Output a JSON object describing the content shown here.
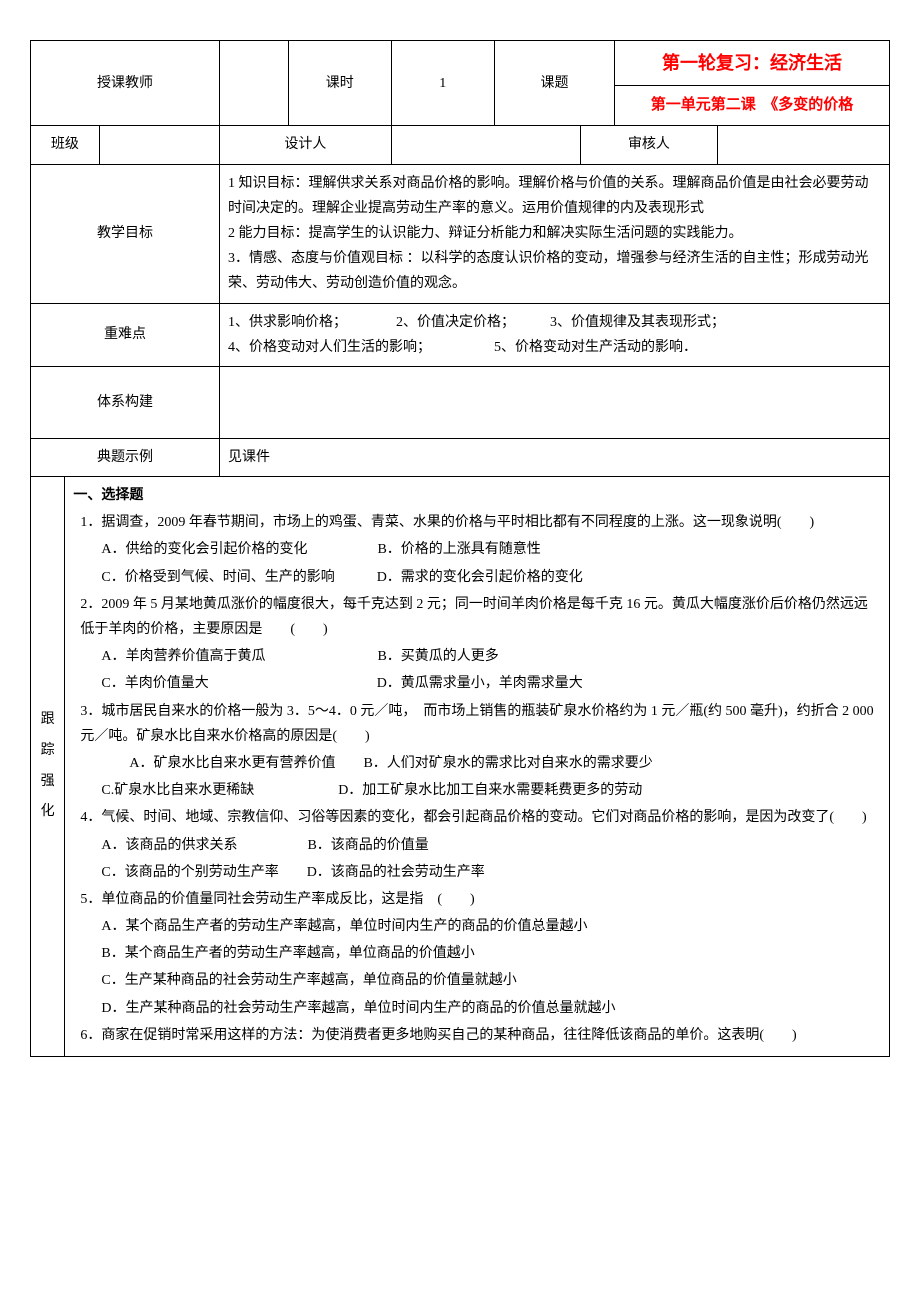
{
  "colors": {
    "text": "#000000",
    "accent": "#ff0000",
    "border": "#000000",
    "bg": "#ffffff"
  },
  "header": {
    "teacher_label": "授课教师",
    "period_label": "课时",
    "period_value": "1",
    "topic_label": "课题",
    "title_main": "第一轮复习：经济生活",
    "title_sub": "第一单元第二课　《多变的价格",
    "class_label": "班级",
    "designer_label": "设计人",
    "reviewer_label": "审核人"
  },
  "rows": {
    "objective_label": "教学目标",
    "objective_text": "1 知识目标：理解供求关系对商品价格的影响。理解价格与价值的关系。理解商品价值是由社会必要劳动时间决定的。理解企业提高劳动生产率的意义。运用价值规律的内及表现形式\n2 能力目标：提高学生的认识能力、辩证分析能力和解决实际生活问题的实践能力。\n3．情感、态度与价值观目标 ：以科学的态度认识价格的变动，增强参与经济生活的自主性；形成劳动光荣、劳动伟大、劳动创造价值的观念。",
    "keypoints_label": "重难点",
    "keypoints_text": "1、供求影响价格；　　　　2、价值决定价格；　　　3、价值规律及其表现形式；\n4、价格变动对人们生活的影响；　　　　　5、价格变动对生产活动的影响．",
    "structure_label": "体系构建",
    "example_label": "典题示例",
    "example_text": "见课件",
    "practice_label": "跟踪强化"
  },
  "exercises": {
    "section_title": "一、选择题",
    "items": [
      {
        "stem": "1．据调查，2009 年春节期间，市场上的鸡蛋、青菜、水果的价格与平时相比都有不同程度的上涨。这一现象说明(　　)",
        "opts": [
          "A．供给的变化会引起价格的变化　　　　　B．价格的上涨具有随意性",
          "C．价格受到气候、时间、生产的影响　　　D．需求的变化会引起价格的变化"
        ]
      },
      {
        "stem": "2．2009 年 5 月某地黄瓜涨价的幅度很大，每千克达到 2 元；同一时间羊肉价格是每千克 16 元。黄瓜大幅度涨价后价格仍然远远低于羊肉的价格，主要原因是　　(　　)",
        "opts": [
          "A．羊肉营养价值高于黄瓜　　　　　　　　B．买黄瓜的人更多",
          "C．羊肉价值量大　　　　　　　　　　　　D．黄瓜需求量小，羊肉需求量大"
        ]
      },
      {
        "stem": "3．城市居民自来水的价格一般为 3．5～4．0 元／吨，　而市场上销售的瓶装矿泉水价格约为 1 元／瓶(约 500 毫升)，约折合 2 000 元／吨。矿泉水比自来水价格高的原因是(　　)",
        "opts": [
          "　　A．矿泉水比自来水更有营养价值　　B．人们对矿泉水的需求比对自来水的需求要少",
          "C.矿泉水比自来水更稀缺　　　　　　D．加工矿泉水比加工自来水需要耗费更多的劳动"
        ]
      },
      {
        "stem": "4．气候、时间、地域、宗教信仰、习俗等因素的变化，都会引起商品价格的变动。它们对商品价格的影响，是因为改变了(　　)",
        "opts": [
          "A．该商品的供求关系　　　　　B．该商品的价值量",
          "C．该商品的个别劳动生产率　　D．该商品的社会劳动生产率"
        ]
      },
      {
        "stem": "5．单位商品的价值量同社会劳动生产率成反比，这是指　(　　)",
        "opts": [
          "A．某个商品生产者的劳动生产率越高，单位时间内生产的商品的价值总量越小",
          "B．某个商品生产者的劳动生产率越高，单位商品的价值越小",
          "C．生产某种商品的社会劳动生产率越高，单位商品的价值量就越小",
          "D．生产某种商品的社会劳动生产率越高，单位时间内生产的商品的价值总量就越小"
        ]
      },
      {
        "stem": "6．商家在促销时常采用这样的方法：为使消费者更多地购买自己的某种商品，往往降低该商品的单价。这表明(　　)",
        "opts": []
      }
    ]
  }
}
